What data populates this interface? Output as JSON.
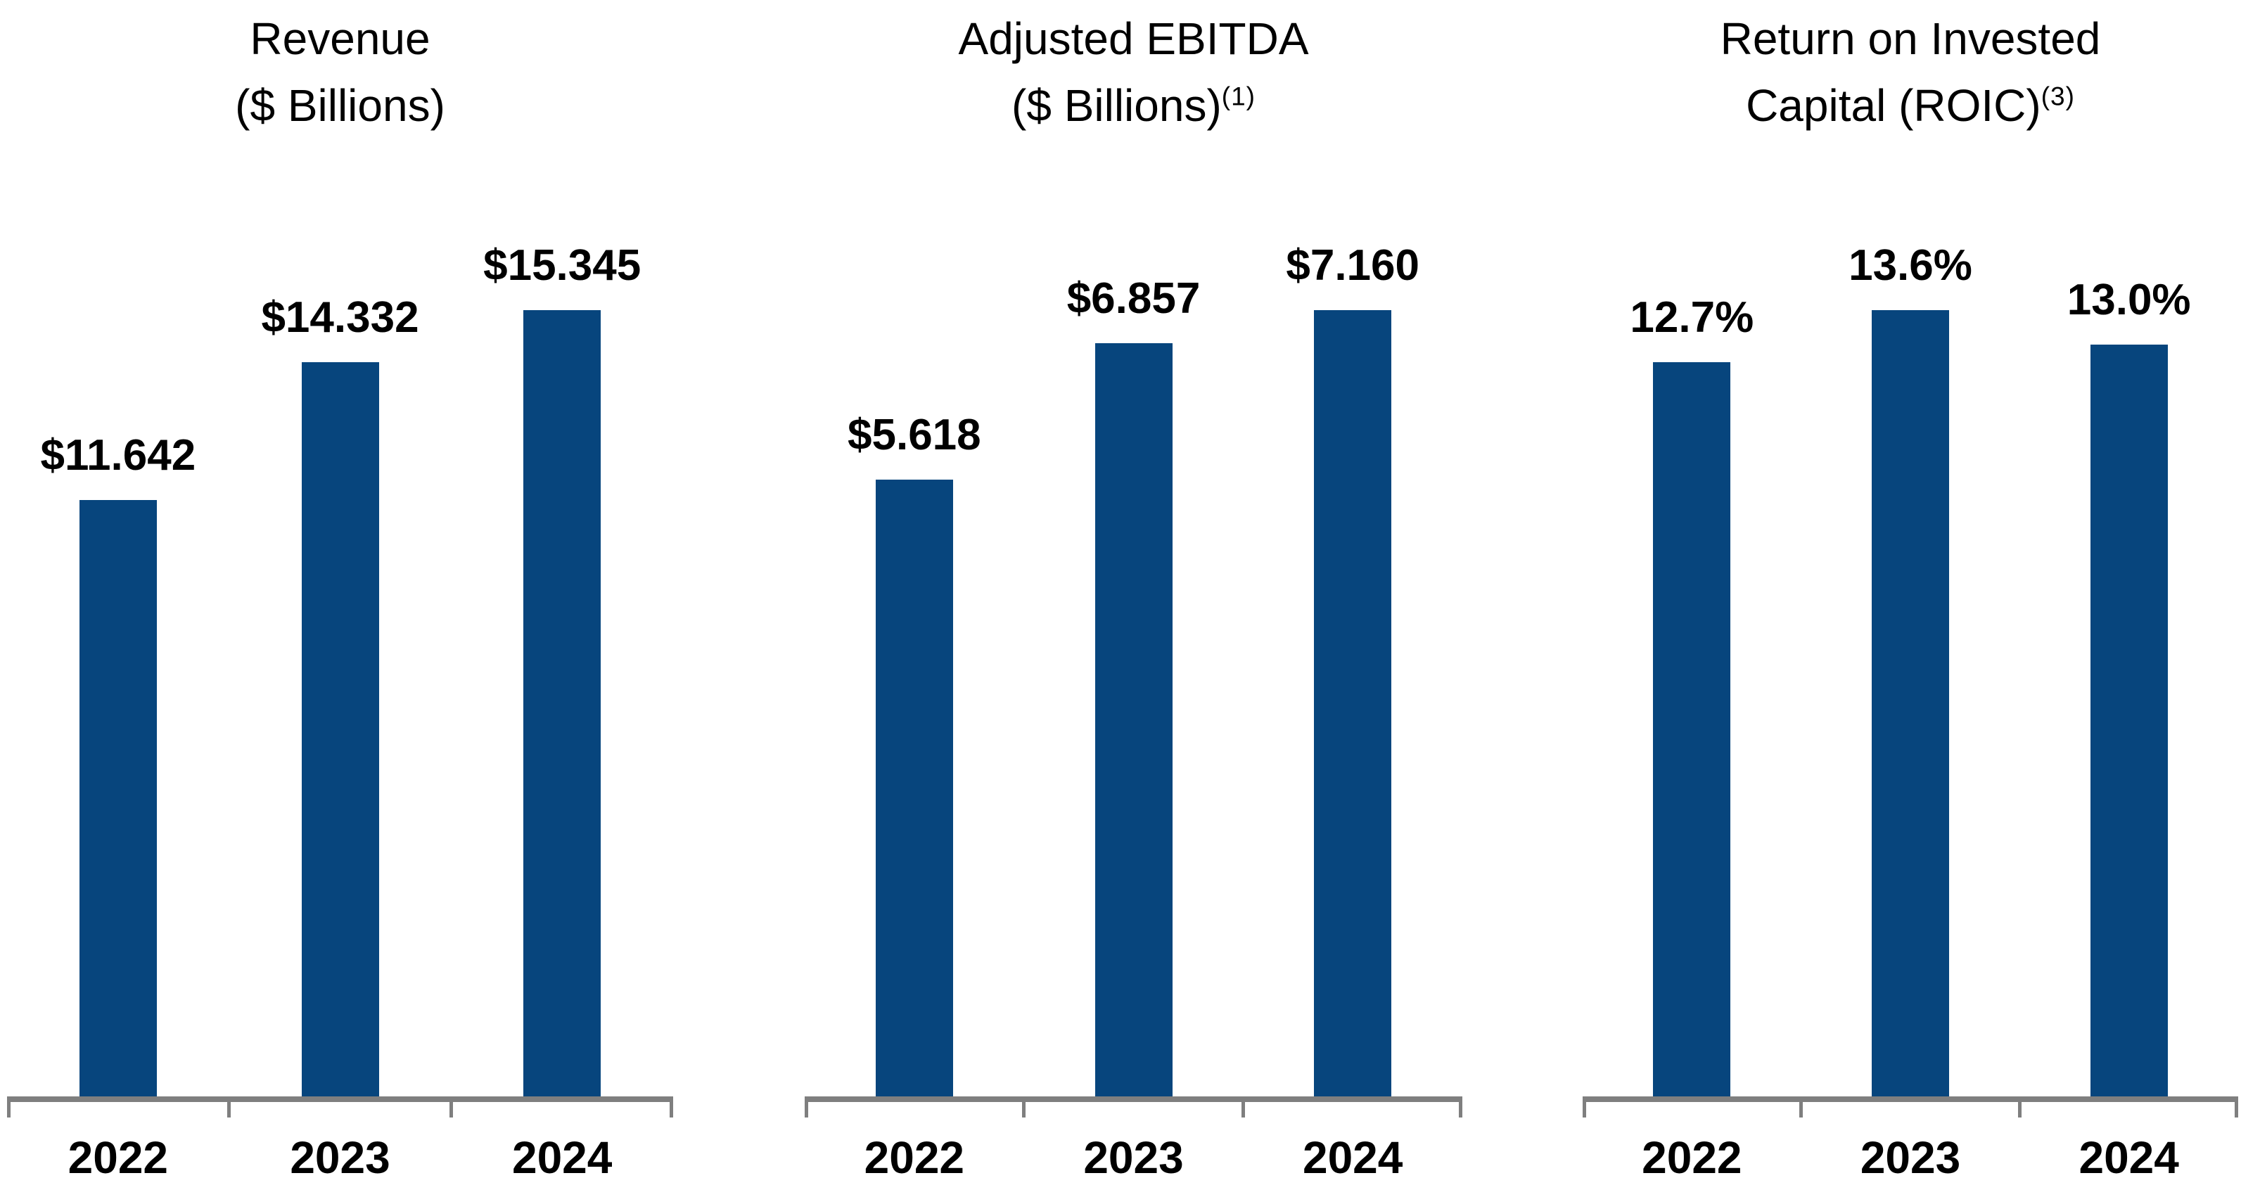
{
  "page": {
    "background": "#FFFFFF"
  },
  "styles": {
    "bar_color": "#07457D",
    "axis_color": "#7F7F7F",
    "text_color": "#000000"
  },
  "chart_data": [
    {
      "type": "bar",
      "title_lines": [
        "Revenue",
        "($ Billions)"
      ],
      "title_superscript": "",
      "categories": [
        "2022",
        "2023",
        "2024"
      ],
      "values": [
        11.642,
        14.332,
        15.345
      ],
      "value_labels": [
        "$11.642",
        "$14.332",
        "$15.345"
      ],
      "xlabel": "",
      "ylabel": "",
      "ylim": [
        0,
        15.345
      ],
      "grid": false,
      "legend": false,
      "value_axis_hidden": true
    },
    {
      "type": "bar",
      "title_lines": [
        "Adjusted EBITDA",
        "($ Billions)"
      ],
      "title_superscript": "(1)",
      "categories": [
        "2022",
        "2023",
        "2024"
      ],
      "values": [
        5.618,
        6.857,
        7.16
      ],
      "value_labels": [
        "$5.618",
        "$6.857",
        "$7.160"
      ],
      "xlabel": "",
      "ylabel": "",
      "ylim": [
        0,
        7.16
      ],
      "grid": false,
      "legend": false,
      "value_axis_hidden": true
    },
    {
      "type": "bar",
      "title_lines": [
        "Return on Invested",
        "Capital (ROIC)"
      ],
      "title_superscript": "(3)",
      "categories": [
        "2022",
        "2023",
        "2024"
      ],
      "values": [
        12.7,
        13.6,
        13.0
      ],
      "value_labels": [
        "12.7%",
        "13.6%",
        "13.0%"
      ],
      "xlabel": "",
      "ylabel": "",
      "ylim": [
        0,
        13.6
      ],
      "grid": false,
      "legend": false,
      "value_axis_hidden": true
    }
  ]
}
